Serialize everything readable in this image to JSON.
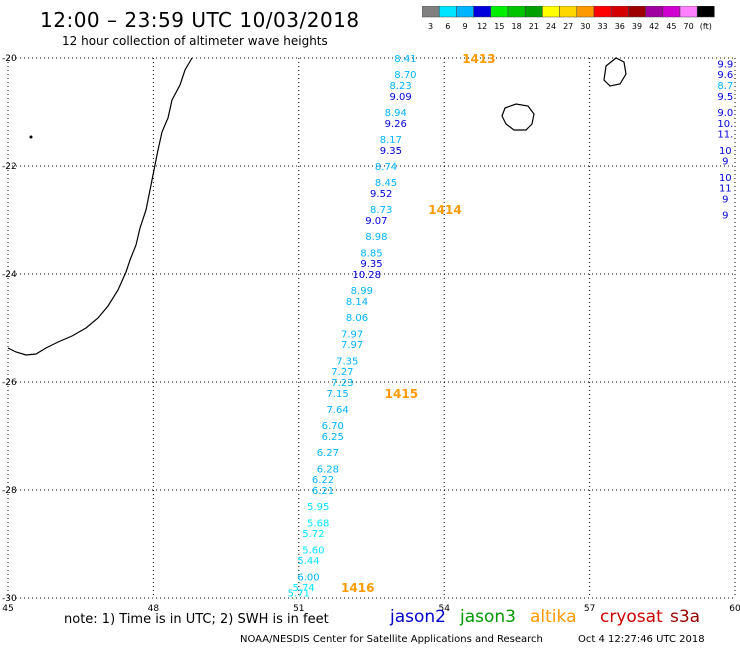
{
  "title": "12:00 – 23:59 UTC 10/03/2018",
  "subtitle": "12 hour collection of altimeter wave heights",
  "note": "note: 1) Time is in UTC; 2) SWH is in feet",
  "credit": "NOAA/NESDIS Center for Satellite Applications and Research",
  "timestamp": "Oct  4 12:27:46 UTC 2018",
  "satellites": [
    {
      "name": "jason2",
      "color": "#0000cc"
    },
    {
      "name": "jason3",
      "color": "#009900"
    },
    {
      "name": "altika",
      "color": "#ff9900"
    },
    {
      "name": "cryosat",
      "color": "#cc0000"
    },
    {
      "name": "s3a",
      "color": "#990000"
    }
  ],
  "legend": {
    "labels": [
      "3",
      "6",
      "9",
      "12",
      "15",
      "18",
      "21",
      "24",
      "27",
      "30",
      "33",
      "36",
      "39",
      "42",
      "45",
      "70",
      "(ft)"
    ],
    "colors": [
      "#808080",
      "#00e5ff",
      "#00b4ff",
      "#0000dd",
      "#00ee00",
      "#00c400",
      "#00a000",
      "#ffff00",
      "#ffd700",
      "#ff9900",
      "#ff0000",
      "#d40000",
      "#9e0000",
      "#a000a0",
      "#d000d0",
      "#ff80ff",
      "#000000"
    ]
  },
  "axes": {
    "lon_min": 45,
    "lon_max": 60,
    "lat_min": -30,
    "lat_max": -20,
    "lon_ticks": [
      "45",
      "48",
      "51",
      "54",
      "57",
      "60"
    ],
    "lat_ticks": [
      "-20",
      "-22",
      "-24",
      "-26",
      "-28",
      "-30"
    ]
  },
  "passes": [
    {
      "label": "1413",
      "lon": 54.0,
      "lat": -20.0
    },
    {
      "label": "1414",
      "lon": 53.3,
      "lat": -22.8
    },
    {
      "label": "1415",
      "lon": 52.4,
      "lat": -26.2
    },
    {
      "label": "1416",
      "lon": 51.5,
      "lat": -29.8
    }
  ],
  "track_main": {
    "points": [
      {
        "v": "8.41",
        "lon": 53.2,
        "lat": -20.0,
        "c": "#00b4ff"
      },
      {
        "v": "8.70",
        "lon": 53.2,
        "lat": -20.3,
        "c": "#00b4ff"
      },
      {
        "v": "8.23",
        "lon": 53.1,
        "lat": -20.5,
        "c": "#00b4ff"
      },
      {
        "v": "9.09",
        "lon": 53.1,
        "lat": -20.7,
        "c": "#0000dd"
      },
      {
        "v": "8.94",
        "lon": 53.0,
        "lat": -21.0,
        "c": "#00b4ff"
      },
      {
        "v": "9.26",
        "lon": 53.0,
        "lat": -21.2,
        "c": "#0000dd"
      },
      {
        "v": "8.17",
        "lon": 52.9,
        "lat": -21.5,
        "c": "#00b4ff"
      },
      {
        "v": "9.35",
        "lon": 52.9,
        "lat": -21.7,
        "c": "#0000dd"
      },
      {
        "v": "8.74",
        "lon": 52.8,
        "lat": -22.0,
        "c": "#00b4ff"
      },
      {
        "v": "8.45",
        "lon": 52.8,
        "lat": -22.3,
        "c": "#00b4ff"
      },
      {
        "v": "9.52",
        "lon": 52.7,
        "lat": -22.5,
        "c": "#0000dd"
      },
      {
        "v": "8.73",
        "lon": 52.7,
        "lat": -22.8,
        "c": "#00b4ff"
      },
      {
        "v": "9.07",
        "lon": 52.6,
        "lat": -23.0,
        "c": "#0000dd"
      },
      {
        "v": "8.98",
        "lon": 52.6,
        "lat": -23.3,
        "c": "#00b4ff"
      },
      {
        "v": "8.85",
        "lon": 52.5,
        "lat": -23.6,
        "c": "#00b4ff"
      },
      {
        "v": "9.35",
        "lon": 52.5,
        "lat": -23.8,
        "c": "#0000dd"
      },
      {
        "v": "10.28",
        "lon": 52.4,
        "lat": -24.0,
        "c": "#0000dd"
      },
      {
        "v": "8.99",
        "lon": 52.3,
        "lat": -24.3,
        "c": "#00b4ff"
      },
      {
        "v": "8.14",
        "lon": 52.2,
        "lat": -24.5,
        "c": "#00b4ff"
      },
      {
        "v": "8.06",
        "lon": 52.2,
        "lat": -24.8,
        "c": "#00b4ff"
      },
      {
        "v": "7.97",
        "lon": 52.1,
        "lat": -25.1,
        "c": "#00b4ff"
      },
      {
        "v": "7.97",
        "lon": 52.1,
        "lat": -25.3,
        "c": "#00b4ff"
      },
      {
        "v": "7.35",
        "lon": 52.0,
        "lat": -25.6,
        "c": "#00b4ff"
      },
      {
        "v": "7.27",
        "lon": 51.9,
        "lat": -25.8,
        "c": "#00b4ff"
      },
      {
        "v": "7.23",
        "lon": 51.9,
        "lat": -26.0,
        "c": "#00b4ff"
      },
      {
        "v": "7.15",
        "lon": 51.8,
        "lat": -26.2,
        "c": "#00b4ff"
      },
      {
        "v": "7.64",
        "lon": 51.8,
        "lat": -26.5,
        "c": "#00b4ff"
      },
      {
        "v": "6.70",
        "lon": 51.7,
        "lat": -26.8,
        "c": "#00b4ff"
      },
      {
        "v": "6.25",
        "lon": 51.7,
        "lat": -27.0,
        "c": "#00b4ff"
      },
      {
        "v": "6.27",
        "lon": 51.6,
        "lat": -27.3,
        "c": "#00b4ff"
      },
      {
        "v": "6.28",
        "lon": 51.6,
        "lat": -27.6,
        "c": "#00b4ff"
      },
      {
        "v": "6.22",
        "lon": 51.5,
        "lat": -27.8,
        "c": "#00b4ff"
      },
      {
        "v": "6.21",
        "lon": 51.5,
        "lat": -28.0,
        "c": "#00b4ff"
      },
      {
        "v": "5.95",
        "lon": 51.4,
        "lat": -28.3,
        "c": "#00e5ff"
      },
      {
        "v": "5.68",
        "lon": 51.4,
        "lat": -28.6,
        "c": "#00e5ff"
      },
      {
        "v": "5.72",
        "lon": 51.3,
        "lat": -28.8,
        "c": "#00e5ff"
      },
      {
        "v": "5.60",
        "lon": 51.3,
        "lat": -29.1,
        "c": "#00e5ff"
      },
      {
        "v": "5.44",
        "lon": 51.2,
        "lat": -29.3,
        "c": "#00e5ff"
      },
      {
        "v": "6.00",
        "lon": 51.2,
        "lat": -29.6,
        "c": "#00b4ff"
      },
      {
        "v": "5.74",
        "lon": 51.1,
        "lat": -29.8,
        "c": "#00e5ff"
      },
      {
        "v": "5.71",
        "lon": 51.0,
        "lat": -29.9,
        "c": "#00e5ff"
      }
    ]
  },
  "track_right": {
    "points": [
      {
        "v": "9.9",
        "lon": 59.8,
        "lat": -20.1,
        "c": "#0000dd"
      },
      {
        "v": "9.6",
        "lon": 59.8,
        "lat": -20.3,
        "c": "#0000dd"
      },
      {
        "v": "8.7",
        "lon": 59.8,
        "lat": -20.5,
        "c": "#00b4ff"
      },
      {
        "v": "9.5",
        "lon": 59.8,
        "lat": -20.7,
        "c": "#0000dd"
      },
      {
        "v": "9.0",
        "lon": 59.8,
        "lat": -21.0,
        "c": "#0000dd"
      },
      {
        "v": "10.",
        "lon": 59.8,
        "lat": -21.2,
        "c": "#0000dd"
      },
      {
        "v": "11.",
        "lon": 59.8,
        "lat": -21.4,
        "c": "#0000dd"
      },
      {
        "v": "10",
        "lon": 59.8,
        "lat": -21.7,
        "c": "#0000dd"
      },
      {
        "v": "9",
        "lon": 59.8,
        "lat": -21.9,
        "c": "#0000dd"
      },
      {
        "v": "10",
        "lon": 59.8,
        "lat": -22.2,
        "c": "#0000dd"
      },
      {
        "v": "11",
        "lon": 59.8,
        "lat": -22.4,
        "c": "#0000dd"
      },
      {
        "v": "9",
        "lon": 59.8,
        "lat": -22.6,
        "c": "#0000dd"
      },
      {
        "v": "9",
        "lon": 59.8,
        "lat": -22.9,
        "c": "#0000dd"
      }
    ]
  }
}
